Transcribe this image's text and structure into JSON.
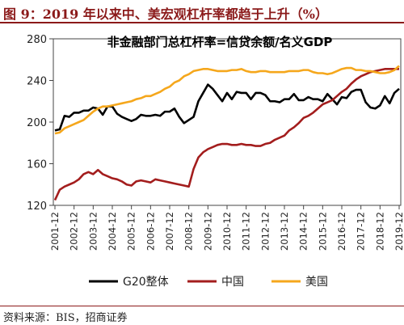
{
  "figure": {
    "title": "图 9：2019 年以来中、美宏观杠杆率都趋于上升（%）",
    "source": "资料来源：BIS，招商证券"
  },
  "colors": {
    "title_red": "#8b1a1a",
    "g20": "#000000",
    "china": "#a31d1d",
    "usa": "#f5a71c"
  },
  "chart_data": {
    "type": "line",
    "title": "非金融部门总杠杆率=信贷余额/名义GDP",
    "ylim": [
      120,
      280
    ],
    "yticks": [
      120,
      160,
      200,
      240,
      280
    ],
    "legend_position": "bottom",
    "x_tick_labels": [
      "2001-12",
      "2002-12",
      "2003-12",
      "2004-12",
      "2005-12",
      "2006-12",
      "2007-12",
      "2008-12",
      "2009-12",
      "2010-12",
      "2011-12",
      "2012-12",
      "2013-12",
      "2014-12",
      "2015-12",
      "2016-12",
      "2017-12",
      "2018-12",
      "2019-12"
    ],
    "x": [
      "2001-12",
      "2002-03",
      "2002-06",
      "2002-09",
      "2002-12",
      "2003-03",
      "2003-06",
      "2003-09",
      "2003-12",
      "2004-03",
      "2004-06",
      "2004-09",
      "2004-12",
      "2005-03",
      "2005-06",
      "2005-09",
      "2005-12",
      "2006-03",
      "2006-06",
      "2006-09",
      "2006-12",
      "2007-03",
      "2007-06",
      "2007-09",
      "2007-12",
      "2008-03",
      "2008-06",
      "2008-09",
      "2008-12",
      "2009-03",
      "2009-06",
      "2009-09",
      "2009-12",
      "2010-03",
      "2010-06",
      "2010-09",
      "2010-12",
      "2011-03",
      "2011-06",
      "2011-09",
      "2011-12",
      "2012-03",
      "2012-06",
      "2012-09",
      "2012-12",
      "2013-03",
      "2013-06",
      "2013-09",
      "2013-12",
      "2014-03",
      "2014-06",
      "2014-09",
      "2014-12",
      "2015-03",
      "2015-06",
      "2015-09",
      "2015-12",
      "2016-03",
      "2016-06",
      "2016-09",
      "2016-12",
      "2017-03",
      "2017-06",
      "2017-09",
      "2017-12",
      "2018-03",
      "2018-06",
      "2018-09",
      "2018-12",
      "2019-03",
      "2019-06",
      "2019-09",
      "2019-12"
    ],
    "series": [
      {
        "name": "G20整体",
        "color": "#000000",
        "values": [
          192,
          193,
          206,
          205,
          209,
          209,
          211,
          211,
          214,
          213,
          207,
          215,
          215,
          208,
          205,
          203,
          201,
          203,
          207,
          206,
          206,
          207,
          206,
          210,
          210,
          213,
          205,
          199,
          202,
          205,
          220,
          228,
          236,
          232,
          226,
          220,
          228,
          222,
          229,
          228,
          228,
          222,
          228,
          228,
          226,
          220,
          220,
          219,
          222,
          222,
          227,
          221,
          221,
          224,
          222,
          222,
          220,
          227,
          222,
          217,
          224,
          223,
          229,
          231,
          231,
          219,
          214,
          213,
          216,
          225,
          218,
          228,
          232
        ]
      },
      {
        "name": "中国",
        "color": "#a31d1d",
        "values": [
          125,
          135,
          138,
          140,
          142,
          145,
          150,
          152,
          150,
          154,
          150,
          148,
          146,
          145,
          143,
          140,
          139,
          143,
          144,
          143,
          142,
          145,
          144,
          143,
          142,
          141,
          140,
          139,
          138,
          155,
          166,
          171,
          174,
          176,
          178,
          179,
          179,
          178,
          178,
          179,
          178,
          178,
          177,
          177,
          179,
          180,
          183,
          185,
          187,
          192,
          195,
          199,
          204,
          206,
          209,
          213,
          217,
          219,
          221,
          225,
          229,
          232,
          237,
          241,
          244,
          246,
          248,
          249,
          250,
          251,
          251,
          251,
          251
        ]
      },
      {
        "name": "美国",
        "color": "#f5a71c",
        "values": [
          189,
          190,
          194,
          196,
          198,
          200,
          202,
          206,
          210,
          213,
          215,
          215,
          216,
          217,
          218,
          219,
          220,
          222,
          223,
          225,
          225,
          227,
          229,
          232,
          234,
          238,
          240,
          244,
          246,
          249,
          250,
          251,
          251,
          250,
          249,
          249,
          249,
          250,
          250,
          251,
          249,
          248,
          248,
          249,
          249,
          248,
          248,
          248,
          248,
          249,
          249,
          249,
          250,
          250,
          248,
          247,
          247,
          246,
          247,
          249,
          251,
          252,
          252,
          250,
          250,
          249,
          249,
          248,
          247,
          247,
          248,
          250,
          254
        ]
      }
    ]
  }
}
